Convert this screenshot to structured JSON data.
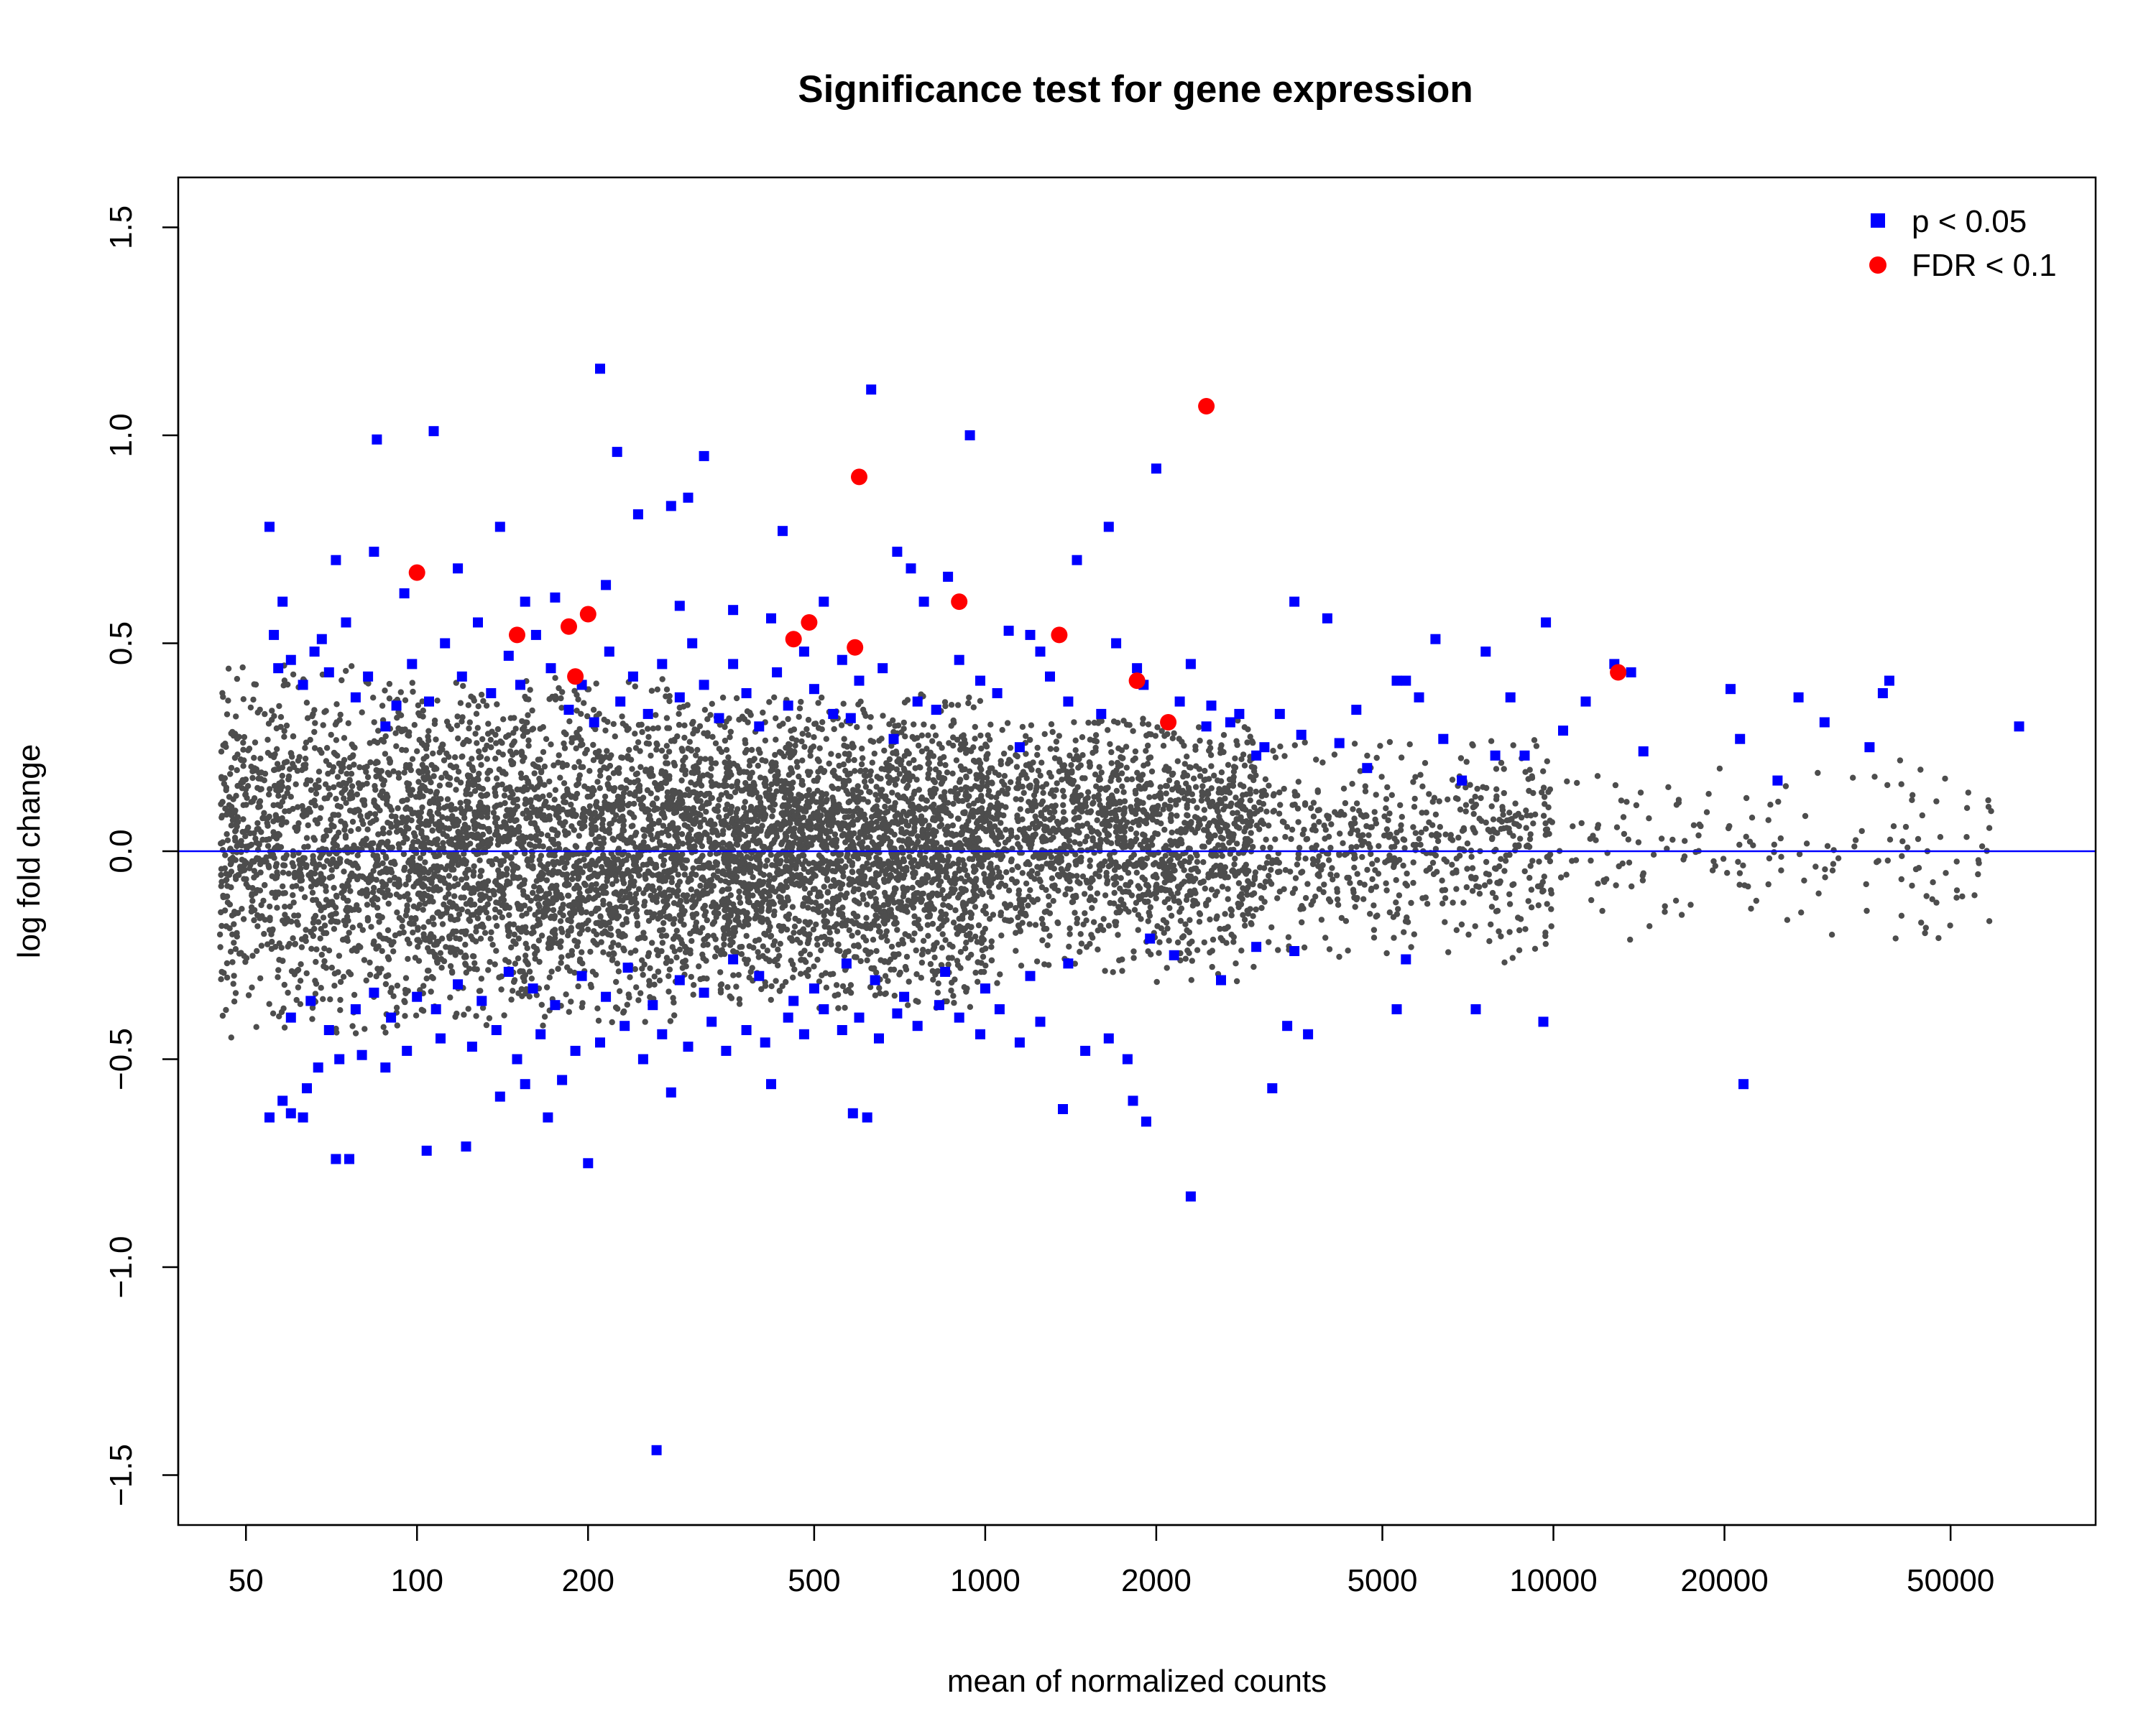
{
  "chart_data": {
    "type": "scatter",
    "title": "Significance test for gene expression",
    "xlabel": "mean of normalized counts",
    "ylabel": "log fold change",
    "x_scale": "log",
    "xlim": [
      38,
      90000
    ],
    "ylim": [
      -1.62,
      1.62
    ],
    "x_ticks": [
      50,
      100,
      200,
      500,
      1000,
      2000,
      5000,
      10000,
      20000,
      50000
    ],
    "x_tick_labels": [
      "50",
      "100",
      "200",
      "500",
      "1000",
      "2000",
      "5000",
      "10000",
      "20000",
      "50000"
    ],
    "y_ticks": [
      -1.5,
      -1.0,
      -0.5,
      0.0,
      0.5,
      1.0,
      1.5
    ],
    "y_tick_labels": [
      "−1.5",
      "−1.0",
      "−0.5",
      "0.0",
      "0.5",
      "1.0",
      "1.5"
    ],
    "reference_line": {
      "y": 0,
      "color": "#0000ff"
    },
    "grid": false,
    "legend_position": "top-right",
    "legend": [
      {
        "label": "p < 0.05",
        "marker": "square",
        "color": "#0000ff"
      },
      {
        "label": "FDR < 0.1",
        "marker": "circle",
        "color": "#ff0000"
      }
    ],
    "series": [
      {
        "name": "p < 0.05",
        "marker": "square",
        "color": "#0000ff",
        "points": [
          [
            210,
            1.16
          ],
          [
            107,
            1.01
          ],
          [
            85,
            0.99
          ],
          [
            320,
            0.95
          ],
          [
            940,
            1.0
          ],
          [
            630,
            1.11
          ],
          [
            225,
            0.96
          ],
          [
            300,
            0.85
          ],
          [
            280,
            0.83
          ],
          [
            245,
            0.81
          ],
          [
            140,
            0.78
          ],
          [
            55,
            0.78
          ],
          [
            440,
            0.77
          ],
          [
            1650,
            0.78
          ],
          [
            2000,
            0.92
          ],
          [
            700,
            0.72
          ],
          [
            740,
            0.68
          ],
          [
            860,
            0.66
          ],
          [
            1450,
            0.7
          ],
          [
            72,
            0.7
          ],
          [
            84,
            0.72
          ],
          [
            118,
            0.68
          ],
          [
            58,
            0.6
          ],
          [
            56,
            0.52
          ],
          [
            68,
            0.51
          ],
          [
            95,
            0.62
          ],
          [
            155,
            0.6
          ],
          [
            175,
            0.61
          ],
          [
            215,
            0.64
          ],
          [
            290,
            0.59
          ],
          [
            360,
            0.58
          ],
          [
            420,
            0.56
          ],
          [
            520,
            0.6
          ],
          [
            780,
            0.6
          ],
          [
            1100,
            0.53
          ],
          [
            1200,
            0.52
          ],
          [
            1700,
            0.5
          ],
          [
            2300,
            0.45
          ],
          [
            3500,
            0.6
          ],
          [
            4000,
            0.56
          ],
          [
            6200,
            0.51
          ],
          [
            7600,
            0.48
          ],
          [
            9700,
            0.55
          ],
          [
            12800,
            0.45
          ],
          [
            13700,
            0.43
          ],
          [
            20500,
            0.39
          ],
          [
            39000,
            0.41
          ],
          [
            38000,
            0.38
          ],
          [
            27000,
            0.37
          ],
          [
            21300,
            0.27
          ],
          [
            24800,
            0.17
          ],
          [
            36000,
            0.25
          ],
          [
            30000,
            0.31
          ],
          [
            66000,
            0.3
          ],
          [
            14400,
            0.24
          ],
          [
            11400,
            0.36
          ],
          [
            10400,
            0.29
          ],
          [
            8400,
            0.37
          ],
          [
            7900,
            0.23
          ],
          [
            6900,
            0.17
          ],
          [
            5800,
            0.37
          ],
          [
            5300,
            0.41
          ],
          [
            4700,
            0.2
          ],
          [
            3300,
            0.33
          ],
          [
            3000,
            0.23
          ],
          [
            2700,
            0.31
          ],
          [
            2500,
            0.35
          ],
          [
            2200,
            0.36
          ],
          [
            1900,
            0.4
          ],
          [
            1600,
            0.33
          ],
          [
            1400,
            0.36
          ],
          [
            1300,
            0.42
          ],
          [
            1150,
            0.25
          ],
          [
            1050,
            0.38
          ],
          [
            980,
            0.41
          ],
          [
            900,
            0.46
          ],
          [
            820,
            0.34
          ],
          [
            760,
            0.36
          ],
          [
            690,
            0.27
          ],
          [
            660,
            0.44
          ],
          [
            600,
            0.41
          ],
          [
            580,
            0.32
          ],
          [
            560,
            0.46
          ],
          [
            540,
            0.33
          ],
          [
            500,
            0.39
          ],
          [
            480,
            0.48
          ],
          [
            450,
            0.35
          ],
          [
            430,
            0.43
          ],
          [
            400,
            0.3
          ],
          [
            380,
            0.38
          ],
          [
            360,
            0.45
          ],
          [
            340,
            0.32
          ],
          [
            320,
            0.4
          ],
          [
            305,
            0.5
          ],
          [
            290,
            0.37
          ],
          [
            270,
            0.45
          ],
          [
            255,
            0.33
          ],
          [
            240,
            0.42
          ],
          [
            228,
            0.36
          ],
          [
            218,
            0.48
          ],
          [
            205,
            0.31
          ],
          [
            195,
            0.4
          ],
          [
            185,
            0.34
          ],
          [
            172,
            0.44
          ],
          [
            162,
            0.52
          ],
          [
            152,
            0.4
          ],
          [
            145,
            0.47
          ],
          [
            135,
            0.38
          ],
          [
            128,
            0.55
          ],
          [
            120,
            0.42
          ],
          [
            112,
            0.5
          ],
          [
            105,
            0.36
          ],
          [
            98,
            0.45
          ],
          [
            92,
            0.35
          ],
          [
            88,
            0.3
          ],
          [
            82,
            0.42
          ],
          [
            78,
            0.37
          ],
          [
            75,
            0.55
          ],
          [
            70,
            0.43
          ],
          [
            66,
            0.48
          ],
          [
            63,
            0.4
          ],
          [
            60,
            0.46
          ],
          [
            57,
            0.44
          ],
          [
            1250,
            0.48
          ],
          [
            1850,
            0.44
          ],
          [
            2100,
            0.31
          ],
          [
            2450,
            0.3
          ],
          [
            2800,
            0.33
          ],
          [
            3100,
            0.25
          ],
          [
            3600,
            0.28
          ],
          [
            4200,
            0.26
          ],
          [
            4500,
            0.34
          ],
          [
            5500,
            0.41
          ],
          [
            6400,
            0.27
          ],
          [
            8900,
            0.23
          ],
          [
            264,
            -1.44
          ],
          [
            2300,
            -0.83
          ],
          [
            200,
            -0.75
          ],
          [
            104,
            -0.72
          ],
          [
            122,
            -0.71
          ],
          [
            72,
            -0.74
          ],
          [
            76,
            -0.74
          ],
          [
            55,
            -0.64
          ],
          [
            60,
            -0.63
          ],
          [
            63,
            -0.64
          ],
          [
            585,
            -0.63
          ],
          [
            620,
            -0.64
          ],
          [
            1370,
            -0.62
          ],
          [
            1920,
            -0.65
          ],
          [
            1820,
            -0.6
          ],
          [
            21600,
            -0.56
          ],
          [
            3200,
            -0.57
          ],
          [
            170,
            -0.64
          ],
          [
            140,
            -0.59
          ],
          [
            155,
            -0.56
          ],
          [
            180,
            -0.55
          ],
          [
            280,
            -0.58
          ],
          [
            420,
            -0.56
          ],
          [
            58,
            -0.6
          ],
          [
            64,
            -0.57
          ],
          [
            67,
            -0.52
          ],
          [
            73,
            -0.5
          ],
          [
            80,
            -0.49
          ],
          [
            88,
            -0.52
          ],
          [
            96,
            -0.48
          ],
          [
            110,
            -0.45
          ],
          [
            125,
            -0.47
          ],
          [
            138,
            -0.43
          ],
          [
            150,
            -0.5
          ],
          [
            165,
            -0.44
          ],
          [
            190,
            -0.48
          ],
          [
            210,
            -0.46
          ],
          [
            232,
            -0.42
          ],
          [
            250,
            -0.5
          ],
          [
            270,
            -0.44
          ],
          [
            300,
            -0.47
          ],
          [
            330,
            -0.41
          ],
          [
            350,
            -0.48
          ],
          [
            380,
            -0.43
          ],
          [
            410,
            -0.46
          ],
          [
            450,
            -0.4
          ],
          [
            480,
            -0.44
          ],
          [
            520,
            -0.38
          ],
          [
            560,
            -0.43
          ],
          [
            600,
            -0.4
          ],
          [
            650,
            -0.45
          ],
          [
            700,
            -0.39
          ],
          [
            760,
            -0.42
          ],
          [
            830,
            -0.37
          ],
          [
            900,
            -0.4
          ],
          [
            980,
            -0.44
          ],
          [
            1060,
            -0.38
          ],
          [
            1150,
            -0.46
          ],
          [
            1250,
            -0.41
          ],
          [
            1500,
            -0.48
          ],
          [
            1650,
            -0.45
          ],
          [
            1780,
            -0.5
          ],
          [
            3400,
            -0.42
          ],
          [
            3700,
            -0.44
          ],
          [
            5300,
            -0.38
          ],
          [
            7300,
            -0.38
          ],
          [
            9600,
            -0.41
          ],
          [
            5500,
            -0.26
          ],
          [
            3500,
            -0.24
          ],
          [
            3000,
            -0.23
          ],
          [
            2600,
            -0.31
          ],
          [
            2150,
            -0.25
          ],
          [
            1950,
            -0.21
          ],
          [
            1400,
            -0.27
          ],
          [
            1200,
            -0.3
          ],
          [
            1000,
            -0.33
          ],
          [
            850,
            -0.29
          ],
          [
            720,
            -0.35
          ],
          [
            640,
            -0.31
          ],
          [
            570,
            -0.27
          ],
          [
            500,
            -0.33
          ],
          [
            460,
            -0.36
          ],
          [
            400,
            -0.3
          ],
          [
            360,
            -0.26
          ],
          [
            320,
            -0.34
          ],
          [
            290,
            -0.31
          ],
          [
            260,
            -0.37
          ],
          [
            235,
            -0.28
          ],
          [
            215,
            -0.35
          ],
          [
            195,
            -0.3
          ],
          [
            175,
            -0.37
          ],
          [
            160,
            -0.33
          ],
          [
            145,
            -0.29
          ],
          [
            130,
            -0.36
          ],
          [
            118,
            -0.32
          ],
          [
            108,
            -0.38
          ],
          [
            100,
            -0.35
          ],
          [
            90,
            -0.4
          ],
          [
            84,
            -0.34
          ],
          [
            78,
            -0.38
          ],
          [
            70,
            -0.43
          ],
          [
            65,
            -0.36
          ],
          [
            60,
            -0.4
          ]
        ]
      },
      {
        "name": "FDR < 0.1",
        "marker": "circle",
        "color": "#ff0000",
        "points": [
          [
            2450,
            1.07
          ],
          [
            600,
            0.9
          ],
          [
            100,
            0.67
          ],
          [
            900,
            0.6
          ],
          [
            200,
            0.57
          ],
          [
            185,
            0.54
          ],
          [
            150,
            0.52
          ],
          [
            490,
            0.55
          ],
          [
            460,
            0.51
          ],
          [
            590,
            0.49
          ],
          [
            1350,
            0.52
          ],
          [
            1850,
            0.41
          ],
          [
            2100,
            0.31
          ],
          [
            190,
            0.42
          ],
          [
            13000,
            0.43
          ]
        ]
      }
    ],
    "background_points": {
      "name": "",
      "color": "#4d4d4d",
      "marker": "small-circle",
      "note_generated": false,
      "clusters": [
        {
          "x_range": [
            45,
            100
          ],
          "y_center": 0.0,
          "y_spread": 0.45,
          "count": 1200
        },
        {
          "x_range": [
            100,
            300
          ],
          "y_center": 0.0,
          "y_spread": 0.42,
          "count": 2200
        },
        {
          "x_range": [
            300,
            1000
          ],
          "y_center": 0.0,
          "y_spread": 0.38,
          "count": 2600
        },
        {
          "x_range": [
            1000,
            3000
          ],
          "y_center": 0.03,
          "y_spread": 0.32,
          "count": 1500
        },
        {
          "x_range": [
            3000,
            10000
          ],
          "y_center": 0.0,
          "y_spread": 0.27,
          "count": 600
        },
        {
          "x_range": [
            10000,
            60000
          ],
          "y_center": 0.0,
          "y_spread": 0.22,
          "count": 180
        }
      ]
    }
  }
}
